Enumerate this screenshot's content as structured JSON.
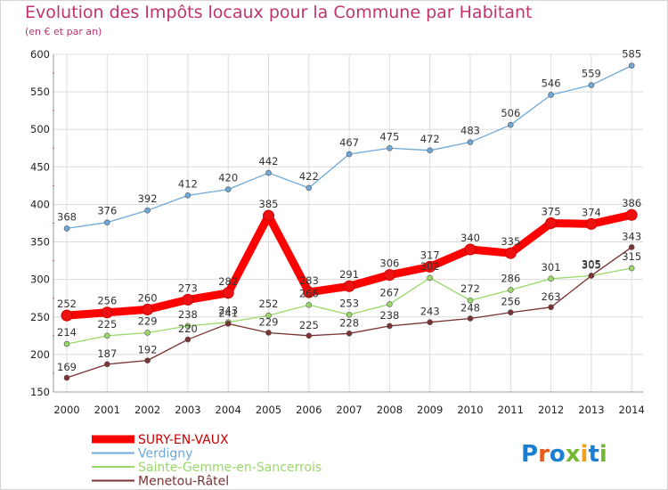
{
  "header": {
    "title": "Evolution des Impôts locaux pour la Commune par Habitant",
    "subtitle": "(en € et par an)"
  },
  "logo": {
    "text": "Proxiti"
  },
  "colors": {
    "title": "#c0336e",
    "grid": "#dcdcdc",
    "axis": "#999999"
  },
  "chart_data": {
    "type": "line",
    "title": "Evolution des Impôts locaux pour la Commune par Habitant",
    "subtitle": "(en € et par an)",
    "x": [
      2000,
      2001,
      2002,
      2003,
      2004,
      2005,
      2006,
      2007,
      2008,
      2009,
      2010,
      2011,
      2012,
      2013,
      2014
    ],
    "ylim": [
      150,
      600
    ],
    "yticks": [
      150,
      200,
      250,
      300,
      350,
      400,
      450,
      500,
      550,
      600
    ],
    "grid": true,
    "legend_position": "bottom-left",
    "series": [
      {
        "name": "SURY-EN-VAUX",
        "color": "#ff0000",
        "values": [
          252,
          256,
          260,
          273,
          282,
          385,
          283,
          291,
          306,
          317,
          340,
          335,
          375,
          374,
          386
        ]
      },
      {
        "name": "Verdigny",
        "color": "#6ea8d8",
        "values": [
          368,
          376,
          392,
          412,
          420,
          442,
          422,
          467,
          475,
          472,
          483,
          506,
          546,
          559,
          585
        ]
      },
      {
        "name": "Sainte-Gemme-en-Sancerrois",
        "color": "#99d96a",
        "values": [
          214,
          225,
          229,
          238,
          243,
          252,
          266,
          253,
          267,
          302,
          272,
          286,
          301,
          305,
          315
        ]
      },
      {
        "name": "Menetou-Râtel",
        "color": "#7a3232",
        "values": [
          169,
          187,
          192,
          220,
          241,
          229,
          225,
          228,
          238,
          243,
          248,
          256,
          263,
          305,
          343
        ]
      }
    ]
  }
}
